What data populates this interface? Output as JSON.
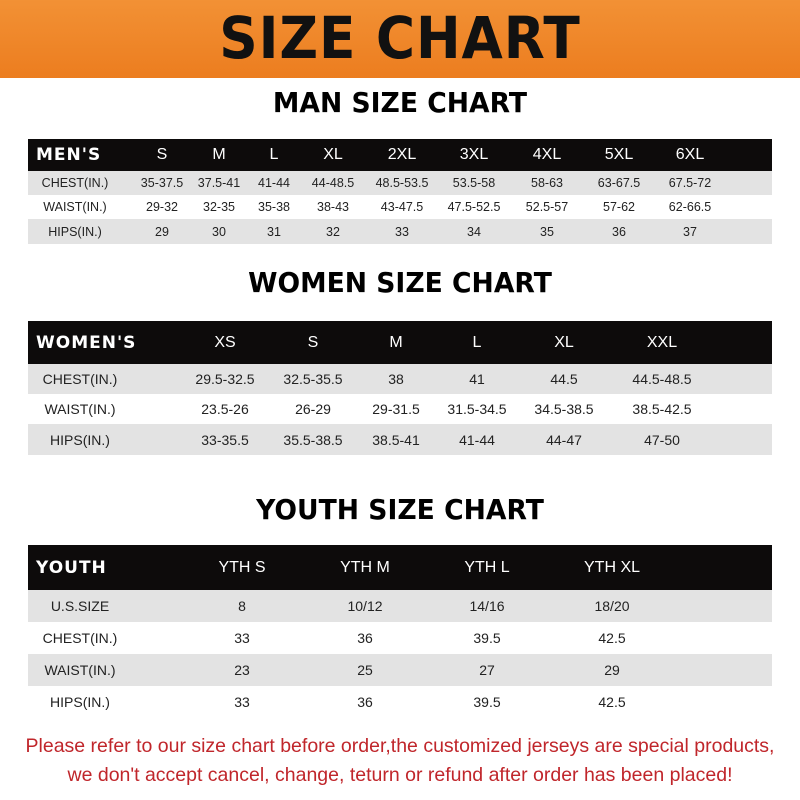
{
  "banner": {
    "title": "SIZE CHART",
    "color": "#ef8628"
  },
  "men": {
    "title": "MAN SIZE CHART",
    "corner": "MEN'S",
    "columns": [
      "S",
      "M",
      "L",
      "XL",
      "2XL",
      "3XL",
      "4XL",
      "5XL",
      "6XL"
    ],
    "rows": [
      {
        "label": "CHEST(IN.)",
        "values": [
          "35-37.5",
          "37.5-41",
          "41-44",
          "44-48.5",
          "48.5-53.5",
          "53.5-58",
          "58-63",
          "63-67.5",
          "67.5-72"
        ]
      },
      {
        "label": "WAIST(IN.)",
        "values": [
          "29-32",
          "32-35",
          "35-38",
          "38-43",
          "43-47.5",
          "47.5-52.5",
          "52.5-57",
          "57-62",
          "62-66.5"
        ]
      },
      {
        "label": "HIPS(IN.)",
        "values": [
          "29",
          "30",
          "31",
          "32",
          "33",
          "34",
          "35",
          "36",
          "37"
        ]
      }
    ]
  },
  "women": {
    "title": "WOMEN SIZE CHART",
    "corner": "WOMEN'S",
    "columns": [
      "XS",
      "S",
      "M",
      "L",
      "XL",
      "XXL"
    ],
    "rows": [
      {
        "label": "CHEST(IN.)",
        "values": [
          "29.5-32.5",
          "32.5-35.5",
          "38",
          "41",
          "44.5",
          "44.5-48.5"
        ]
      },
      {
        "label": "WAIST(IN.)",
        "values": [
          "23.5-26",
          "26-29",
          "29-31.5",
          "31.5-34.5",
          "34.5-38.5",
          "38.5-42.5"
        ]
      },
      {
        "label": "HIPS(IN.)",
        "values": [
          "33-35.5",
          "35.5-38.5",
          "38.5-41",
          "41-44",
          "44-47",
          "47-50"
        ]
      }
    ]
  },
  "youth": {
    "title": "YOUTH SIZE CHART",
    "corner": "YOUTH",
    "columns": [
      "YTH S",
      "YTH M",
      "YTH L",
      "YTH XL"
    ],
    "rows": [
      {
        "label": "U.S.SIZE",
        "values": [
          "8",
          "10/12",
          "14/16",
          "18/20"
        ]
      },
      {
        "label": "CHEST(IN.)",
        "values": [
          "33",
          "36",
          "39.5",
          "42.5"
        ]
      },
      {
        "label": "WAIST(IN.)",
        "values": [
          "23",
          "25",
          "27",
          "29"
        ]
      },
      {
        "label": "HIPS(IN.)",
        "values": [
          "33",
          "36",
          "39.5",
          "42.5"
        ]
      }
    ]
  },
  "footer": {
    "line1": "Please refer to our size chart before order,the customized jerseys are special products,",
    "line2": "we don't accept cancel, change, teturn or refund after order has been placed!",
    "color": "#c0262b"
  }
}
